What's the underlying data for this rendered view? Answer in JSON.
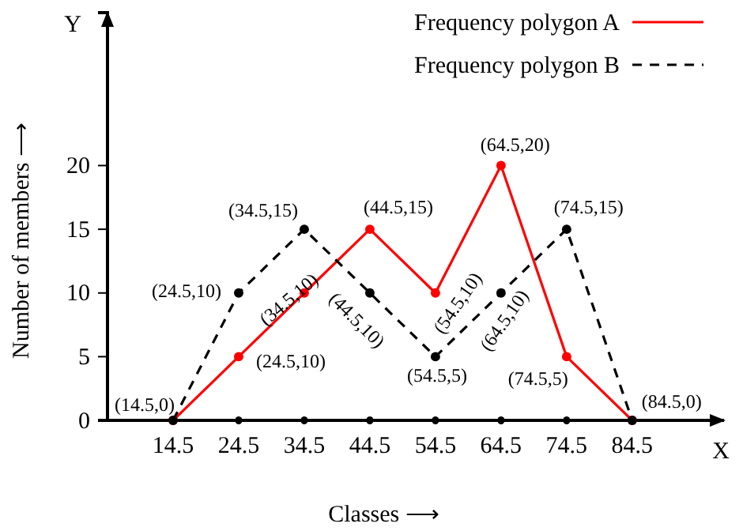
{
  "chart_data": {
    "type": "line",
    "xlabel": "Classes ⟶",
    "ylabel": "Number of members ⟶",
    "xlim": [
      4.5,
      98.5
    ],
    "ylim": [
      0,
      32
    ],
    "xticks": [
      14.5,
      24.5,
      34.5,
      44.5,
      54.5,
      64.5,
      74.5,
      84.5
    ],
    "yticks": [
      0,
      5,
      10,
      15,
      20
    ],
    "grid": false,
    "legend": "top right",
    "marker": "circle",
    "series": [
      {
        "name": "Frequency polygon  A",
        "color": "#ff0000",
        "line_style": "solid",
        "x": [
          14.5,
          24.5,
          34.5,
          44.5,
          54.5,
          64.5,
          74.5,
          84.5
        ],
        "values": [
          0,
          5,
          10,
          15,
          10,
          20,
          5,
          0
        ]
      },
      {
        "name": "Frequency polygon  B",
        "color": "#000000",
        "line_style": "dashed",
        "x": [
          14.5,
          24.5,
          34.5,
          44.5,
          54.5,
          64.5,
          74.5,
          84.5
        ],
        "values": [
          0,
          10,
          15,
          10,
          5,
          10,
          15,
          0
        ]
      }
    ],
    "annotations": [
      "Y",
      "X",
      {
        "text": "(14.5,0)",
        "x": 14.5,
        "y": 0
      },
      {
        "text": "(24.5,10)",
        "x": 24.5,
        "y": 10
      },
      {
        "text": "(34.5,15)",
        "x": 34.5,
        "y": 15
      },
      {
        "text": "(44.5,15)",
        "x": 44.5,
        "y": 15
      },
      {
        "text": "(64.5,20)",
        "x": 64.5,
        "y": 20
      },
      {
        "text": "(74.5,15)",
        "x": 74.5,
        "y": 15
      },
      {
        "text": "(34.5,10)",
        "x": 34.5,
        "y": 10
      },
      {
        "text": "(44.5,10)",
        "x": 44.5,
        "y": 10
      },
      {
        "text": "(54.5,10)",
        "x": 54.5,
        "y": 10
      },
      {
        "text": "(64.5,10)",
        "x": 64.5,
        "y": 10
      },
      {
        "text": "(24.5,10)",
        "x": 24.5,
        "y": 5
      },
      {
        "text": "(54.5,5)",
        "x": 54.5,
        "y": 5
      },
      {
        "text": "(74.5,5)",
        "x": 74.5,
        "y": 5
      },
      {
        "text": "(84.5,0)",
        "x": 84.5,
        "y": 0
      }
    ]
  }
}
